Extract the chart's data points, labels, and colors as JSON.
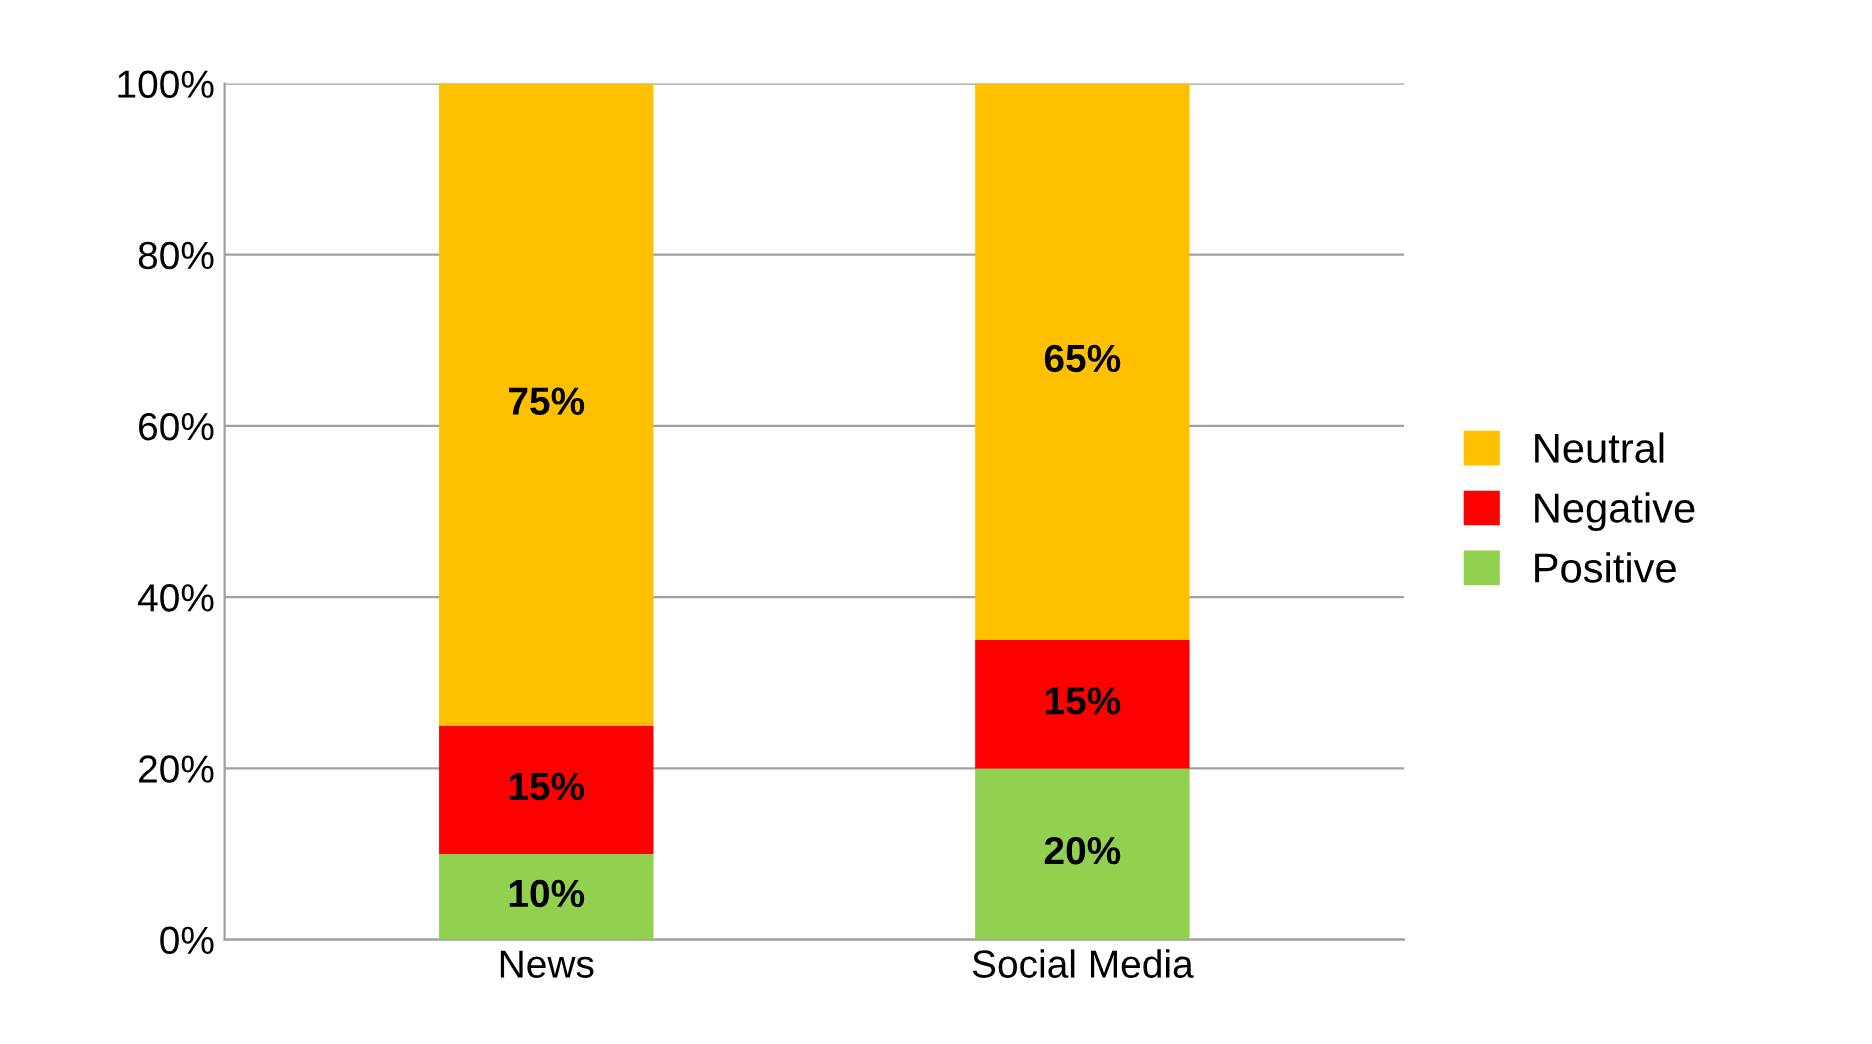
{
  "chart_data": {
    "type": "bar",
    "stacked": true,
    "categories": [
      "News",
      "Social Media"
    ],
    "series": [
      {
        "name": "Positive",
        "color": "#92d050",
        "values": [
          10,
          20
        ],
        "value_labels": [
          "10%",
          "20%"
        ]
      },
      {
        "name": "Negative",
        "color": "#ff0000",
        "values": [
          15,
          15
        ],
        "value_labels": [
          "15%",
          "15%"
        ]
      },
      {
        "name": "Neutral",
        "color": "#ffc000",
        "values": [
          75,
          65
        ],
        "value_labels": [
          "75%",
          "65%"
        ]
      }
    ],
    "ylim": [
      0,
      100
    ],
    "yticks": [
      {
        "value": 0,
        "label": "0%"
      },
      {
        "value": 20,
        "label": "20%"
      },
      {
        "value": 40,
        "label": "40%"
      },
      {
        "value": 60,
        "label": "60%"
      },
      {
        "value": 80,
        "label": "80%"
      },
      {
        "value": 100,
        "label": "100%"
      }
    ],
    "grid": "y",
    "legend": "right"
  }
}
